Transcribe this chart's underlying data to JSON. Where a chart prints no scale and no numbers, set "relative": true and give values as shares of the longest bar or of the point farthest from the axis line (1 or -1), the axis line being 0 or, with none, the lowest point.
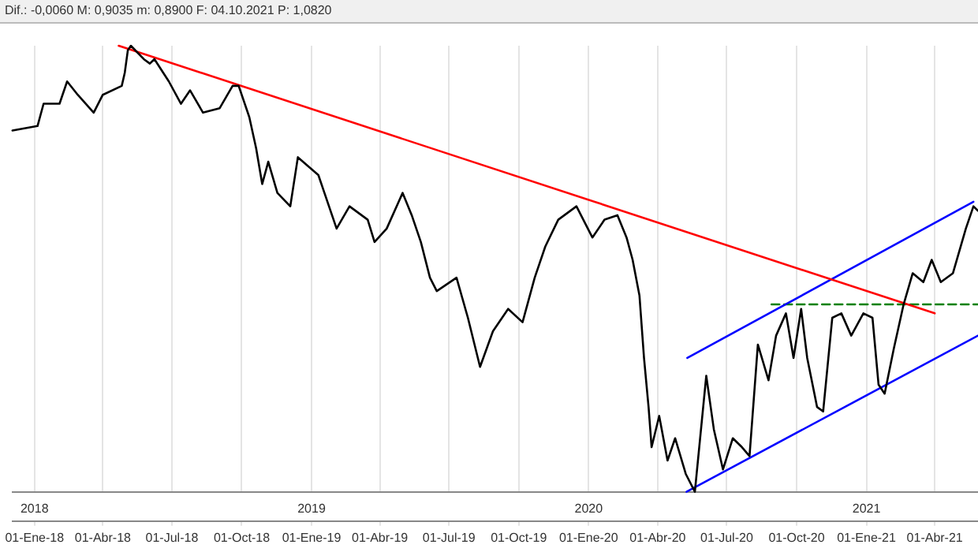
{
  "chart_data": {
    "type": "line",
    "relative": true,
    "grid": "x",
    "legend": false,
    "marker": "none",
    "annotations": [
      "Dif.: -0,0060  M: 0,9035  m: 0,8900  F: 04.10.2021  P: 1,0820"
    ],
    "xlim": [
      "2017-12-03",
      "2021-05-28"
    ],
    "xticks": [
      {
        "value": "2018-01-01",
        "label": "01-Ene-18"
      },
      {
        "value": "2018-04-01",
        "label": "01-Abr-18"
      },
      {
        "value": "2018-07-01",
        "label": "01-Jul-18"
      },
      {
        "value": "2018-10-01",
        "label": "01-Oct-18"
      },
      {
        "value": "2019-01-01",
        "label": "01-Ene-19"
      },
      {
        "value": "2019-04-01",
        "label": "01-Abr-19"
      },
      {
        "value": "2019-07-01",
        "label": "01-Jul-19"
      },
      {
        "value": "2019-10-01",
        "label": "01-Oct-19"
      },
      {
        "value": "2020-01-01",
        "label": "01-Ene-20"
      },
      {
        "value": "2020-04-01",
        "label": "01-Abr-20"
      },
      {
        "value": "2020-07-01",
        "label": "01-Jul-20"
      },
      {
        "value": "2020-10-01",
        "label": "01-Oct-20"
      },
      {
        "value": "2021-01-01",
        "label": "01-Ene-21"
      },
      {
        "value": "2021-04-01",
        "label": "01-Abr-21"
      }
    ],
    "x2lim": [
      "2017-12-03",
      "2021-05-28"
    ],
    "x2ticks": [
      {
        "value": "2018-01-01",
        "label": "2018"
      },
      {
        "value": "2019-01-01",
        "label": "2019"
      },
      {
        "value": "2020-01-01",
        "label": "2020"
      },
      {
        "value": "2021-01-01",
        "label": "2021"
      }
    ],
    "series": [
      {
        "color": "#000000",
        "x": [
          "2017-12-03",
          "2018-01-05",
          "2018-01-13",
          "2018-02-03",
          "2018-02-13",
          "2018-02-27",
          "2018-03-20",
          "2018-04-01",
          "2018-04-26",
          "2018-04-30",
          "2018-05-04",
          "2018-05-08",
          "2018-05-25",
          "2018-06-02",
          "2018-06-08",
          "2018-06-27",
          "2018-07-13",
          "2018-07-25",
          "2018-08-11",
          "2018-09-02",
          "2018-09-19",
          "2018-09-27",
          "2018-10-11",
          "2018-10-20",
          "2018-10-28",
          "2018-11-05",
          "2018-11-17",
          "2018-12-04",
          "2018-12-14",
          "2019-01-10",
          "2019-01-18",
          "2019-02-03",
          "2019-02-20",
          "2019-03-16",
          "2019-03-25",
          "2019-04-10",
          "2019-05-01",
          "2019-05-13",
          "2019-05-25",
          "2019-06-06",
          "2019-06-15",
          "2019-07-11",
          "2019-07-26",
          "2019-08-11",
          "2019-08-28",
          "2019-09-17",
          "2019-10-06",
          "2019-10-22",
          "2019-11-05",
          "2019-11-22",
          "2019-12-16",
          "2020-01-06",
          "2020-01-22",
          "2020-02-08",
          "2020-02-20",
          "2020-02-28",
          "2020-03-08",
          "2020-03-14",
          "2020-03-20",
          "2020-03-24",
          "2020-04-03",
          "2020-04-14",
          "2020-04-24",
          "2020-05-08",
          "2020-05-20",
          "2020-06-04",
          "2020-06-14",
          "2020-06-26",
          "2020-07-09",
          "2020-07-21",
          "2020-07-31",
          "2020-08-11",
          "2020-08-25",
          "2020-09-04",
          "2020-09-17",
          "2020-09-27",
          "2020-10-07",
          "2020-10-15",
          "2020-10-28",
          "2020-11-05",
          "2020-11-17",
          "2020-11-29",
          "2020-12-12",
          "2020-12-28",
          "2021-01-09",
          "2021-01-17",
          "2021-01-25",
          "2021-02-06",
          "2021-02-19",
          "2021-03-03",
          "2021-03-17",
          "2021-03-28",
          "2021-04-09",
          "2021-04-25",
          "2021-05-12",
          "2021-05-22",
          "2021-05-28"
        ],
        "values": [
          0.81,
          0.82,
          0.87,
          0.87,
          0.92,
          0.89,
          0.85,
          0.89,
          0.91,
          0.94,
          0.99,
          1.0,
          0.97,
          0.96,
          0.97,
          0.92,
          0.87,
          0.9,
          0.85,
          0.86,
          0.91,
          0.91,
          0.84,
          0.77,
          0.69,
          0.74,
          0.67,
          0.64,
          0.75,
          0.71,
          0.67,
          0.59,
          0.64,
          0.61,
          0.56,
          0.59,
          0.67,
          0.62,
          0.56,
          0.48,
          0.45,
          0.48,
          0.39,
          0.28,
          0.36,
          0.41,
          0.38,
          0.48,
          0.55,
          0.61,
          0.64,
          0.57,
          0.61,
          0.62,
          0.57,
          0.52,
          0.44,
          0.3,
          0.19,
          0.1,
          0.17,
          0.07,
          0.12,
          0.04,
          0.0,
          0.26,
          0.14,
          0.05,
          0.12,
          0.1,
          0.08,
          0.33,
          0.25,
          0.35,
          0.4,
          0.3,
          0.41,
          0.3,
          0.19,
          0.18,
          0.39,
          0.4,
          0.35,
          0.4,
          0.39,
          0.24,
          0.22,
          0.32,
          0.42,
          0.49,
          0.47,
          0.52,
          0.47,
          0.49,
          0.59,
          0.64,
          0.63
        ]
      },
      {
        "type": "line",
        "color": "#ff0000",
        "x": [
          "2018-04-22",
          "2021-04-01"
        ],
        "values": [
          1.0,
          0.4
        ]
      },
      {
        "type": "line",
        "color": "#0000ff",
        "x": [
          "2020-05-10",
          "2021-05-22"
        ],
        "values": [
          0.3,
          0.65
        ]
      },
      {
        "type": "line",
        "color": "#0000ff",
        "x": [
          "2020-05-09",
          "2021-05-28"
        ],
        "values": [
          0.0,
          0.35
        ]
      },
      {
        "type": "line",
        "color": "#008000",
        "line_style": "dashed",
        "x": [
          "2020-08-29",
          "2021-05-28"
        ],
        "values": [
          0.42,
          0.42
        ]
      }
    ]
  }
}
